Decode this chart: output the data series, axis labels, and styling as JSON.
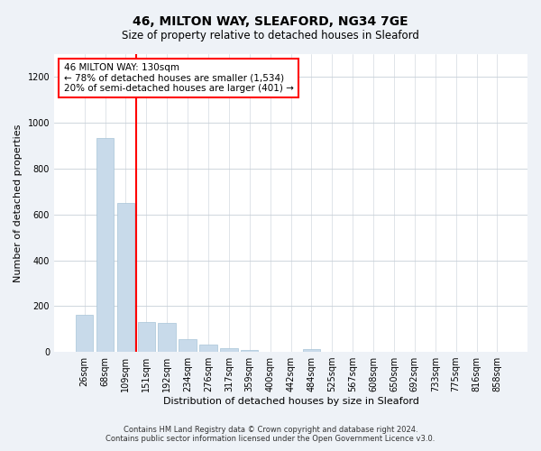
{
  "title_line1": "46, MILTON WAY, SLEAFORD, NG34 7GE",
  "title_line2": "Size of property relative to detached houses in Sleaford",
  "xlabel": "Distribution of detached houses by size in Sleaford",
  "ylabel": "Number of detached properties",
  "categories": [
    "26sqm",
    "68sqm",
    "109sqm",
    "151sqm",
    "192sqm",
    "234sqm",
    "276sqm",
    "317sqm",
    "359sqm",
    "400sqm",
    "442sqm",
    "484sqm",
    "525sqm",
    "567sqm",
    "608sqm",
    "650sqm",
    "692sqm",
    "733sqm",
    "775sqm",
    "816sqm",
    "858sqm"
  ],
  "values": [
    160,
    935,
    650,
    130,
    128,
    55,
    30,
    18,
    10,
    0,
    0,
    13,
    0,
    0,
    0,
    0,
    0,
    0,
    0,
    0,
    0
  ],
  "bar_color": "#c8daea",
  "bar_edge_color": "#a8c4d8",
  "red_line_x": 2.5,
  "annotation_title": "46 MILTON WAY: 130sqm",
  "annotation_line1": "← 78% of detached houses are smaller (1,534)",
  "annotation_line2": "20% of semi-detached houses are larger (401) →",
  "ylim": [
    0,
    1300
  ],
  "yticks": [
    0,
    200,
    400,
    600,
    800,
    1000,
    1200
  ],
  "footnote1": "Contains HM Land Registry data © Crown copyright and database right 2024.",
  "footnote2": "Contains public sector information licensed under the Open Government Licence v3.0.",
  "bg_color": "#eef2f7",
  "plot_bg_color": "#ffffff",
  "title1_fontsize": 10,
  "title2_fontsize": 8.5,
  "xlabel_fontsize": 8,
  "ylabel_fontsize": 8,
  "tick_fontsize": 7,
  "annotation_fontsize": 7.5,
  "footnote_fontsize": 6
}
